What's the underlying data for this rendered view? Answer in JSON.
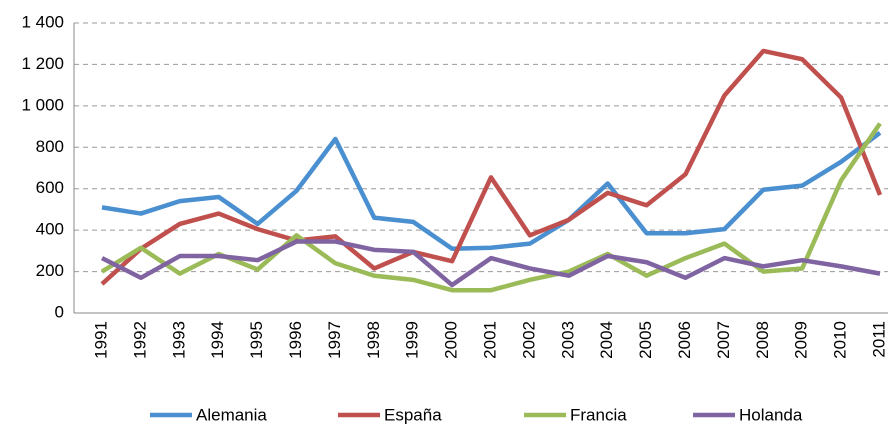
{
  "chart_data": {
    "type": "line",
    "categories": [
      "1991",
      "1992",
      "1993",
      "1994",
      "1995",
      "1996",
      "1997",
      "1998",
      "1999",
      "2000",
      "2001",
      "2002",
      "2003",
      "2004",
      "2005",
      "2006",
      "2007",
      "2008",
      "2009",
      "2010",
      "2011"
    ],
    "series": [
      {
        "name": "Alemania",
        "color": "#4a8fd0",
        "values": [
          510,
          480,
          540,
          560,
          430,
          590,
          840,
          460,
          440,
          310,
          315,
          335,
          450,
          625,
          385,
          385,
          405,
          595,
          615,
          730,
          870
        ]
      },
      {
        "name": "España",
        "color": "#c0504d",
        "values": [
          140,
          310,
          430,
          480,
          405,
          350,
          370,
          215,
          295,
          250,
          655,
          375,
          450,
          580,
          520,
          670,
          1050,
          1265,
          1225,
          1040,
          570
        ]
      },
      {
        "name": "Francia",
        "color": "#9bbb59",
        "values": [
          200,
          315,
          190,
          285,
          210,
          375,
          240,
          180,
          160,
          110,
          110,
          160,
          200,
          285,
          180,
          265,
          335,
          200,
          215,
          640,
          915
        ]
      },
      {
        "name": "Holanda",
        "color": "#8064a2",
        "values": [
          265,
          170,
          275,
          275,
          255,
          345,
          345,
          305,
          295,
          135,
          265,
          215,
          180,
          275,
          245,
          170,
          265,
          225,
          255,
          225,
          190
        ]
      }
    ],
    "ylim": [
      0,
      1400
    ],
    "yticks": [
      0,
      200,
      400,
      600,
      800,
      {
        "value": 1000,
        "label": "1 000"
      },
      {
        "value": 1200,
        "label": "1 200"
      },
      {
        "value": 1400,
        "label": "1 400"
      }
    ],
    "grid": true,
    "legend": "bottom"
  }
}
